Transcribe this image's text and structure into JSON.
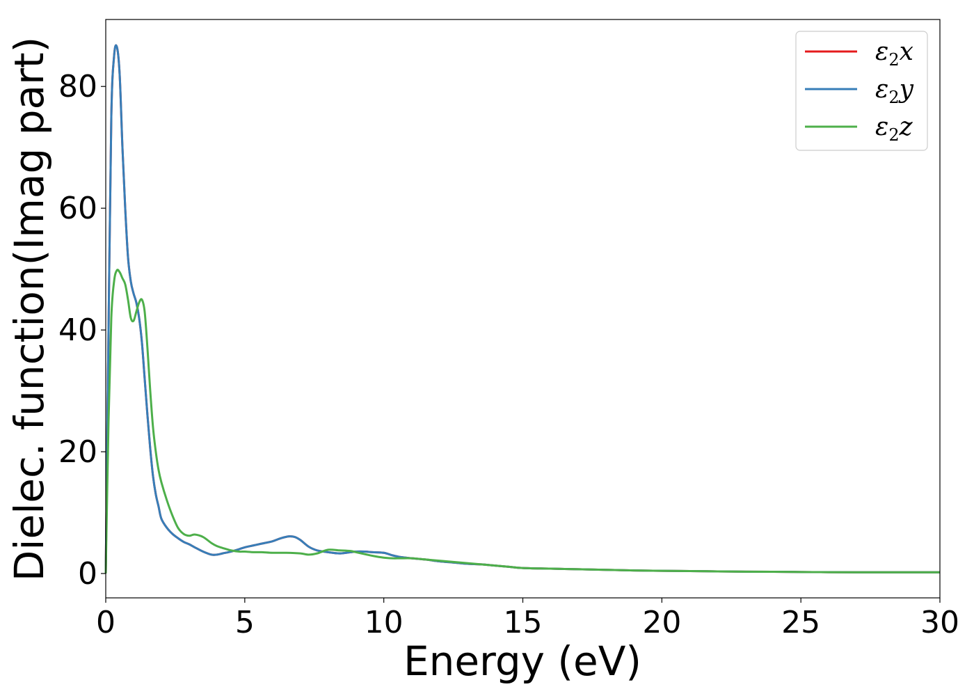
{
  "chart_data": {
    "type": "line",
    "xlabel": "Energy (eV)",
    "ylabel": "Dielec. function(Imag part)",
    "xlim": [
      0,
      30
    ],
    "ylim": [
      -4,
      91
    ],
    "xticks": [
      0,
      5,
      10,
      15,
      20,
      25,
      30
    ],
    "xtick_labels": [
      "0",
      "5",
      "10",
      "15",
      "20",
      "25",
      "30"
    ],
    "yticks": [
      0,
      20,
      40,
      60,
      80
    ],
    "ytick_labels": [
      "0",
      "20",
      "40",
      "60",
      "80"
    ],
    "grid": false,
    "legend_position": "top-right",
    "series": [
      {
        "name": "ε2x",
        "symbol": "ε",
        "subscript": "2",
        "suffix": "x",
        "color": "#e41a1c",
        "x": [
          0,
          0.1,
          0.2,
          0.3,
          0.4,
          0.5,
          0.6,
          0.7,
          0.8,
          0.9,
          1.0,
          1.1,
          1.2,
          1.3,
          1.4,
          1.5,
          1.6,
          1.7,
          1.8,
          1.9,
          2.0,
          2.2,
          2.4,
          2.6,
          2.8,
          3.0,
          3.2,
          3.5,
          3.8,
          4.0,
          4.2,
          4.5,
          4.8,
          5.0,
          5.3,
          5.6,
          6.0,
          6.3,
          6.6,
          6.8,
          7.0,
          7.3,
          7.6,
          8.0,
          8.4,
          8.8,
          9.0,
          9.3,
          9.6,
          10.0,
          10.3,
          10.6,
          11.0,
          11.5,
          12.0,
          12.5,
          13.0,
          13.5,
          14.0,
          14.5,
          15.0,
          16.0,
          17.0,
          18.0,
          19.0,
          20.0,
          21.0,
          22.0,
          23.0,
          24.0,
          25.0,
          26.0,
          27.0,
          28.0,
          29.0,
          30.0
        ],
        "y": [
          0,
          40,
          75,
          85,
          86.5,
          82,
          70,
          60,
          52,
          48,
          46,
          44.5,
          42,
          38,
          32,
          26,
          20.5,
          16,
          13,
          11,
          9,
          7.5,
          6.5,
          5.8,
          5.2,
          4.8,
          4.3,
          3.6,
          3.1,
          3.1,
          3.3,
          3.6,
          4.0,
          4.3,
          4.6,
          4.9,
          5.3,
          5.8,
          6.1,
          6.0,
          5.5,
          4.4,
          3.8,
          3.5,
          3.3,
          3.5,
          3.6,
          3.6,
          3.5,
          3.4,
          3.0,
          2.7,
          2.5,
          2.3,
          2.0,
          1.8,
          1.6,
          1.5,
          1.3,
          1.1,
          0.9,
          0.8,
          0.7,
          0.6,
          0.5,
          0.45,
          0.4,
          0.35,
          0.3,
          0.28,
          0.25,
          0.22,
          0.2,
          0.2,
          0.2,
          0.2
        ]
      },
      {
        "name": "ε2y",
        "symbol": "ε",
        "subscript": "2",
        "suffix": "y",
        "color": "#377eb8",
        "x": [
          0,
          0.1,
          0.2,
          0.3,
          0.4,
          0.5,
          0.6,
          0.7,
          0.8,
          0.9,
          1.0,
          1.1,
          1.2,
          1.3,
          1.4,
          1.5,
          1.6,
          1.7,
          1.8,
          1.9,
          2.0,
          2.2,
          2.4,
          2.6,
          2.8,
          3.0,
          3.2,
          3.5,
          3.8,
          4.0,
          4.2,
          4.5,
          4.8,
          5.0,
          5.3,
          5.6,
          6.0,
          6.3,
          6.6,
          6.8,
          7.0,
          7.3,
          7.6,
          8.0,
          8.4,
          8.8,
          9.0,
          9.3,
          9.6,
          10.0,
          10.3,
          10.6,
          11.0,
          11.5,
          12.0,
          12.5,
          13.0,
          13.5,
          14.0,
          14.5,
          15.0,
          16.0,
          17.0,
          18.0,
          19.0,
          20.0,
          21.0,
          22.0,
          23.0,
          24.0,
          25.0,
          26.0,
          27.0,
          28.0,
          29.0,
          30.0
        ],
        "y": [
          0,
          40,
          75,
          85,
          86.5,
          82,
          70,
          60,
          52,
          48,
          46,
          44.5,
          42,
          38,
          32,
          26,
          20.5,
          16,
          13,
          11,
          9,
          7.5,
          6.5,
          5.8,
          5.2,
          4.8,
          4.3,
          3.6,
          3.1,
          3.1,
          3.3,
          3.6,
          4.0,
          4.3,
          4.6,
          4.9,
          5.3,
          5.8,
          6.1,
          6.0,
          5.5,
          4.4,
          3.8,
          3.5,
          3.3,
          3.5,
          3.6,
          3.6,
          3.5,
          3.4,
          3.0,
          2.7,
          2.5,
          2.3,
          2.0,
          1.8,
          1.6,
          1.5,
          1.3,
          1.1,
          0.9,
          0.8,
          0.7,
          0.6,
          0.5,
          0.45,
          0.4,
          0.35,
          0.3,
          0.28,
          0.25,
          0.22,
          0.2,
          0.2,
          0.2,
          0.2
        ]
      },
      {
        "name": "ε2z",
        "symbol": "ε",
        "subscript": "2",
        "suffix": "z",
        "color": "#4daf4a",
        "x": [
          0,
          0.1,
          0.2,
          0.3,
          0.4,
          0.5,
          0.6,
          0.7,
          0.8,
          0.9,
          1.0,
          1.1,
          1.2,
          1.3,
          1.4,
          1.5,
          1.6,
          1.7,
          1.8,
          1.9,
          2.0,
          2.2,
          2.4,
          2.6,
          2.8,
          3.0,
          3.2,
          3.5,
          3.8,
          4.0,
          4.2,
          4.5,
          4.8,
          5.0,
          5.3,
          5.6,
          6.0,
          6.5,
          7.0,
          7.3,
          7.6,
          8.0,
          8.4,
          8.8,
          9.0,
          9.3,
          9.6,
          10.0,
          10.3,
          10.6,
          11.0,
          11.5,
          12.0,
          12.5,
          13.0,
          13.5,
          14.0,
          14.5,
          15.0,
          16.0,
          17.0,
          18.0,
          19.0,
          20.0,
          21.0,
          22.0,
          23.0,
          24.0,
          25.0,
          26.0,
          27.0,
          28.0,
          29.0,
          30.0
        ],
        "y": [
          0,
          25,
          42,
          48,
          49.8,
          49.5,
          48.5,
          47.5,
          45,
          42,
          41.5,
          43,
          44.5,
          45,
          43,
          37,
          30,
          24,
          20,
          17,
          15,
          12,
          9.5,
          7.5,
          6.5,
          6.2,
          6.4,
          6.0,
          5.0,
          4.5,
          4.2,
          3.8,
          3.6,
          3.6,
          3.5,
          3.5,
          3.4,
          3.4,
          3.3,
          3.1,
          3.3,
          3.9,
          3.8,
          3.7,
          3.5,
          3.2,
          2.9,
          2.6,
          2.5,
          2.5,
          2.5,
          2.3,
          2.1,
          1.9,
          1.7,
          1.5,
          1.3,
          1.1,
          0.9,
          0.8,
          0.7,
          0.6,
          0.5,
          0.45,
          0.4,
          0.35,
          0.3,
          0.28,
          0.25,
          0.22,
          0.2,
          0.2,
          0.2,
          0.2
        ]
      }
    ]
  }
}
